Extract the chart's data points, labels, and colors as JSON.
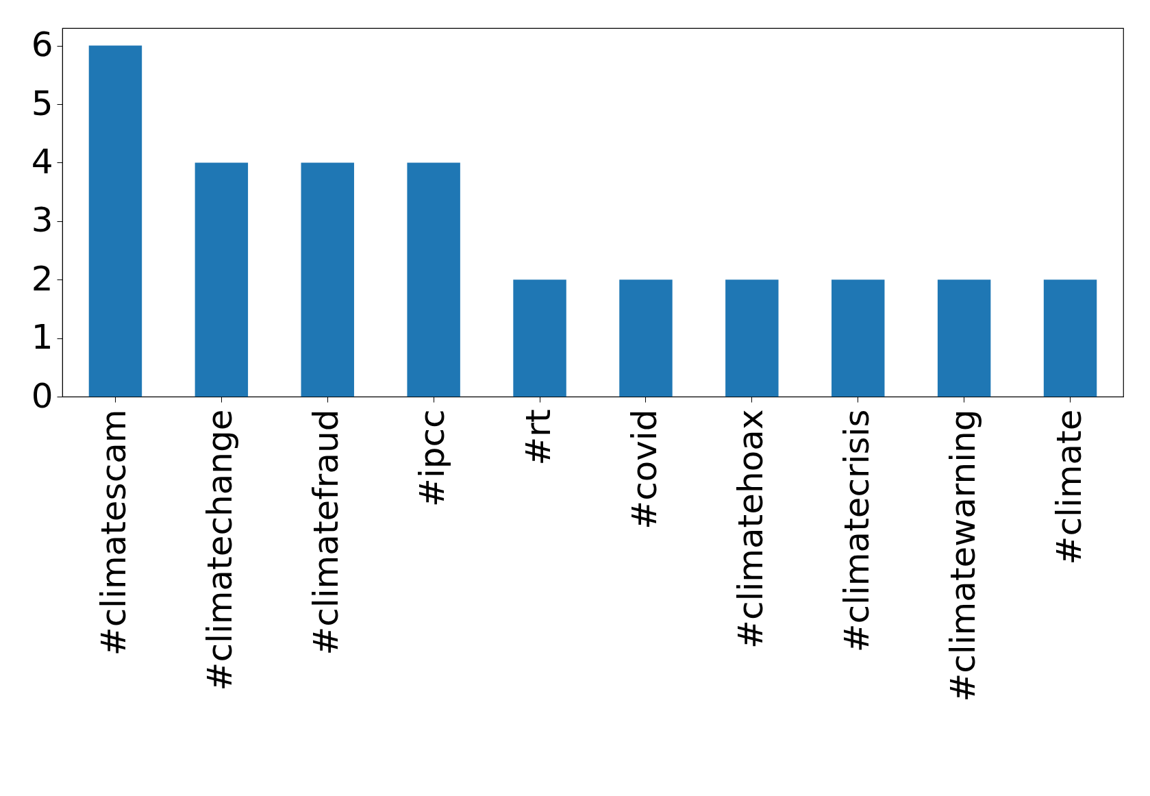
{
  "chart_data": {
    "type": "bar",
    "categories": [
      "#climatescam",
      "#climatechange",
      "#climatefraud",
      "#ipcc",
      "#rt",
      "#covid",
      "#climatehoax",
      "#climatecrisis",
      "#climatewarning",
      "#climate"
    ],
    "values": [
      6,
      4,
      4,
      4,
      2,
      2,
      2,
      2,
      2,
      2
    ],
    "color": "#1f77b4",
    "ylim": [
      0,
      6.3
    ],
    "yticks": [
      0,
      1,
      2,
      3,
      4,
      5,
      6
    ]
  }
}
